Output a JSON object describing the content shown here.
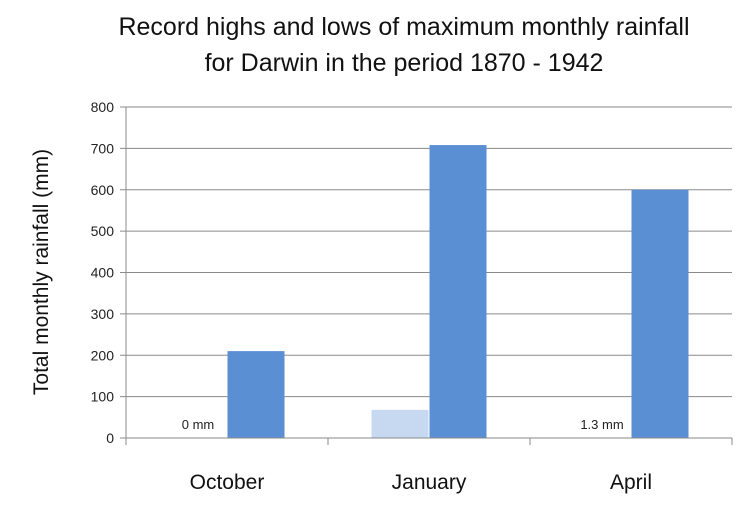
{
  "chart_data": {
    "type": "bar",
    "title_line1": "Record highs and lows of maximum monthly rainfall",
    "title_line2": "for Darwin in the period 1870 - 1942",
    "xlabel": "",
    "ylabel": "Total monthly rainfall (mm)",
    "ylim": [
      0,
      800
    ],
    "yticks": [
      0,
      100,
      200,
      300,
      400,
      500,
      600,
      700,
      800
    ],
    "grid": true,
    "categories": [
      "October",
      "January",
      "April"
    ],
    "series": [
      {
        "color": "#c6d9f1",
        "values": [
          0,
          68,
          1.3
        ]
      },
      {
        "color": "#5b8fd4",
        "values": [
          210,
          708,
          600
        ]
      }
    ],
    "annotations": [
      {
        "category": "October",
        "series": 0,
        "text": "0 mm"
      },
      {
        "category": "April",
        "series": 0,
        "text": "1.3 mm"
      }
    ]
  }
}
